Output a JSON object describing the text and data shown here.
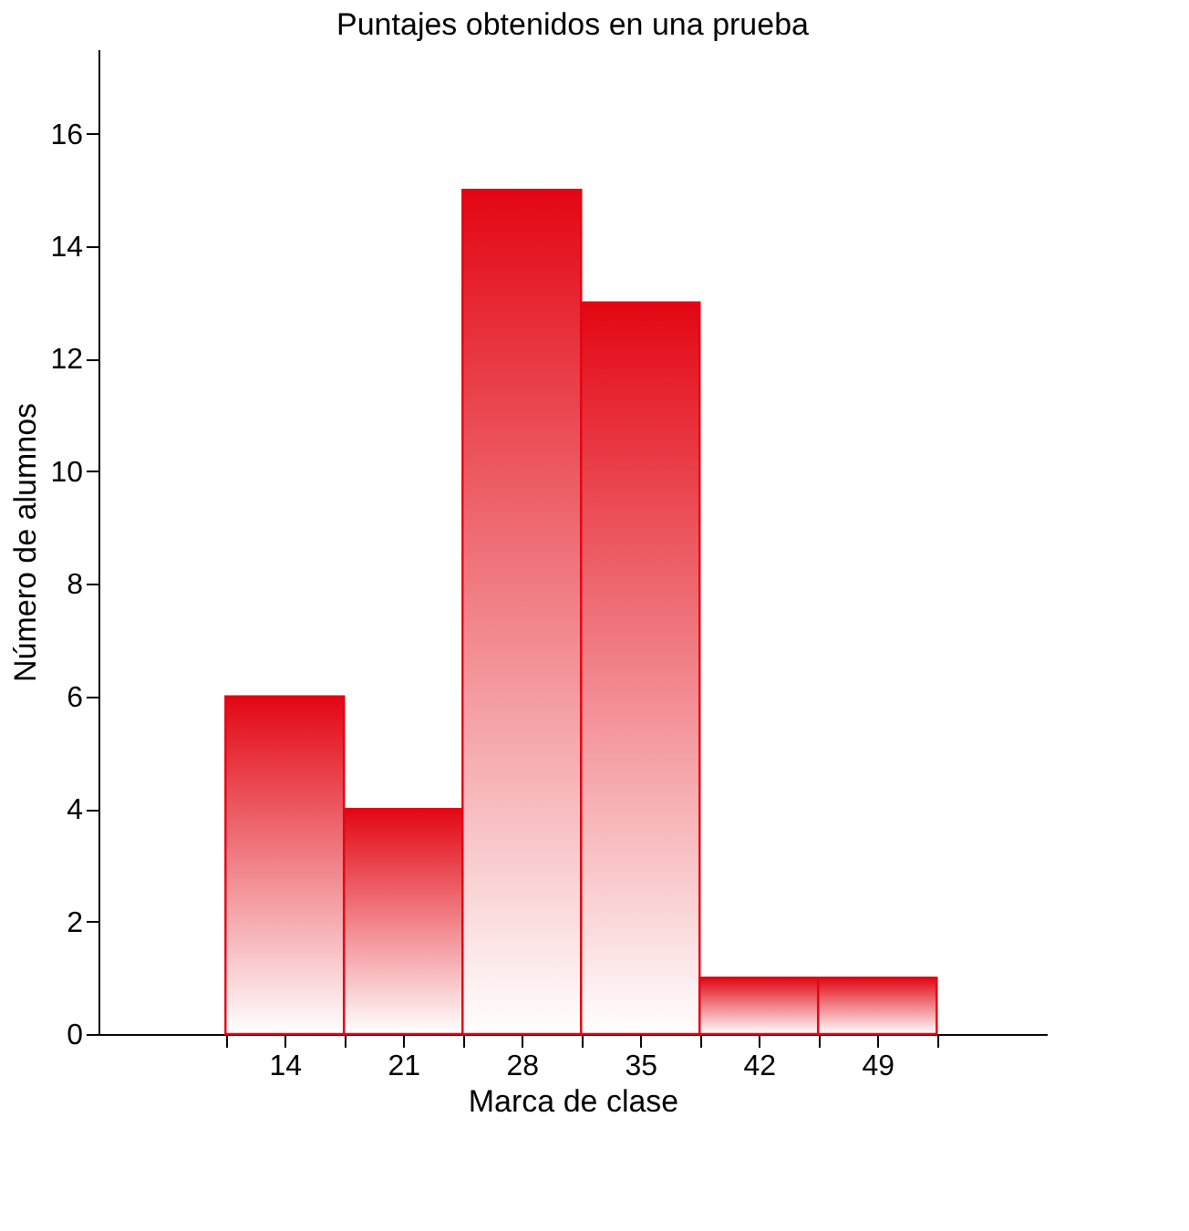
{
  "chart_data": {
    "type": "histogram",
    "title": "Puntajes obtenidos en una prueba",
    "xlabel": "Marca de clase",
    "ylabel": "Número de alumnos",
    "bins": [
      10.5,
      17.5,
      24.5,
      31.5,
      38.5,
      45.5,
      52.5
    ],
    "values": [
      6,
      4,
      15,
      13,
      1,
      1
    ],
    "color": "#e30613",
    "xlim": [
      3,
      59
    ],
    "ylim": [
      0,
      17.5
    ],
    "xticks": [
      {
        "value": 10.5,
        "label": null
      },
      14,
      {
        "value": 17.5,
        "label": null
      },
      21,
      {
        "value": 24.5,
        "label": null
      },
      28,
      {
        "value": 31.5,
        "label": null
      },
      35,
      {
        "value": 38.5,
        "label": null
      },
      42,
      {
        "value": 45.5,
        "label": null
      },
      49,
      {
        "value": 52.5,
        "label": null
      }
    ],
    "yticks": [
      0,
      2,
      4,
      6,
      8,
      10,
      12,
      14,
      16
    ],
    "grid": false
  }
}
